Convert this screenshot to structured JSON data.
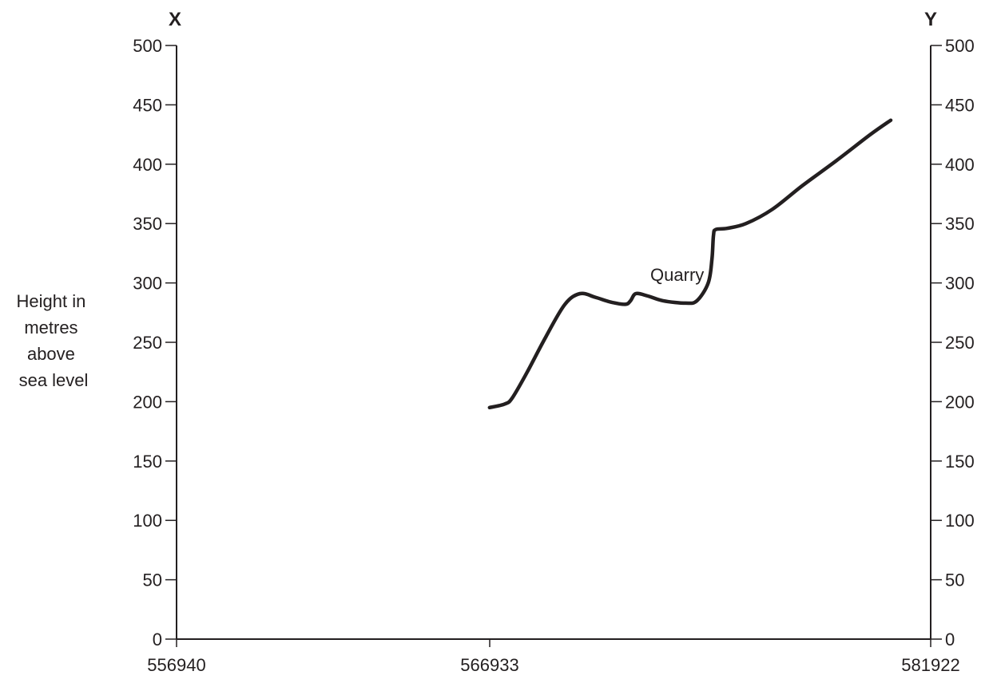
{
  "chart_data": {
    "type": "line",
    "title": "",
    "left_end_label": "X",
    "right_end_label": "Y",
    "ylabel_lines": [
      "Height in",
      "metres",
      "above",
      "sea level"
    ],
    "ylim": [
      0,
      500
    ],
    "y_ticks": [
      0,
      50,
      100,
      150,
      200,
      250,
      300,
      350,
      400,
      450,
      500
    ],
    "y_tick_labels": [
      "0",
      "50",
      "100",
      "150",
      "200",
      "250",
      "300",
      "350",
      "400",
      "450",
      "500"
    ],
    "x_tick_labels": [
      "556940",
      "566933",
      "581922"
    ],
    "grid": false,
    "annotations": [
      {
        "text": "Quarry",
        "x": 0.66,
        "y": 307
      }
    ],
    "series": [
      {
        "x": [
          0.415,
          0.435,
          0.445,
          0.465,
          0.49,
          0.515,
          0.535,
          0.555,
          0.575,
          0.595,
          0.602,
          0.609,
          0.625,
          0.645,
          0.675,
          0.69,
          0.705,
          0.71,
          0.712,
          0.715,
          0.73,
          0.755,
          0.79,
          0.83,
          0.875,
          0.92,
          0.947
        ],
        "y": [
          195,
          198,
          203,
          225,
          255,
          282,
          291,
          288,
          284,
          282,
          285,
          291,
          289,
          285,
          283,
          285,
          300,
          320,
          340,
          345,
          346,
          350,
          362,
          382,
          403,
          425,
          437
        ]
      }
    ]
  }
}
